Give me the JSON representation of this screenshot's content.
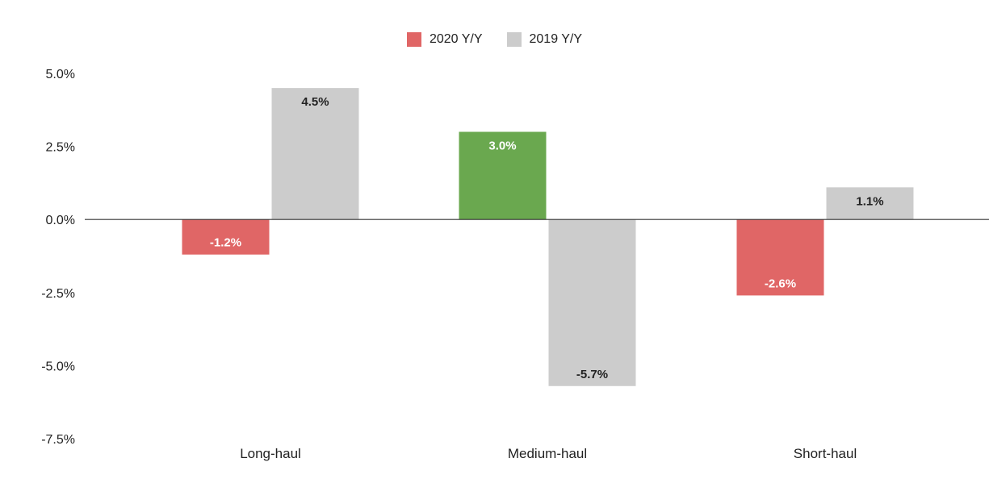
{
  "chart_data": {
    "type": "bar",
    "categories": [
      "Long-haul",
      "Medium-haul",
      "Short-haul"
    ],
    "series": [
      {
        "name": "2020 Y/Y",
        "values": [
          -1.2,
          3.0,
          -2.6
        ],
        "labels": [
          "-1.2%",
          "3.0%",
          "-2.6%"
        ]
      },
      {
        "name": "2019 Y/Y",
        "values": [
          4.5,
          -5.7,
          1.1
        ],
        "labels": [
          "4.5%",
          "-5.7%",
          "1.1%"
        ]
      }
    ],
    "yticks": [
      "5.0%",
      "2.5%",
      "0.0%",
      "-2.5%",
      "-5.0%",
      "-7.5%"
    ],
    "ytick_values": [
      5.0,
      2.5,
      0.0,
      -2.5,
      -5.0,
      -7.5
    ],
    "ylim": [
      -7.5,
      5.0
    ],
    "legend_position": "top-center",
    "grid": false
  },
  "colors": {
    "series_2020_negative": "#e06666",
    "series_2020_positive": "#6aa84f",
    "series_2019": "#cccccc",
    "axis": "#333333"
  }
}
